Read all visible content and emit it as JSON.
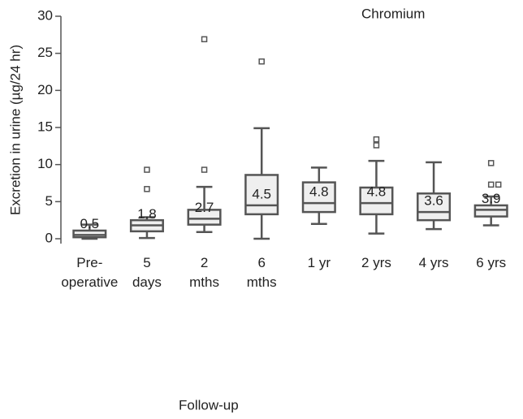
{
  "chart_data": {
    "type": "box",
    "title": "Chromium",
    "x_label": "Follow-up",
    "y_label": "Excretion in urine (µg/24 hr)",
    "categories": [
      "Pre-\noperative",
      "5\ndays",
      "2\nmths",
      "6\nmths",
      "1 yr",
      "2 yrs",
      "4 yrs",
      "6 yrs"
    ],
    "boxes": [
      {
        "low": 0,
        "q1": 0.2,
        "median": 0.5,
        "q3": 1.1,
        "high": 1.9,
        "outliers": []
      },
      {
        "low": 0.1,
        "q1": 1.0,
        "median": 1.8,
        "q3": 2.5,
        "high": 2.9,
        "outliers": [
          6.7,
          9.3
        ]
      },
      {
        "low": 0.9,
        "q1": 1.9,
        "median": 2.7,
        "q3": 3.9,
        "high": 7.0,
        "outliers": [
          9.3,
          26.9
        ]
      },
      {
        "low": 0,
        "q1": 3.3,
        "median": 4.5,
        "q3": 8.6,
        "high": 14.9,
        "outliers": [
          23.9
        ]
      },
      {
        "low": 2.0,
        "q1": 3.6,
        "median": 4.8,
        "q3": 7.6,
        "high": 9.6,
        "outliers": []
      },
      {
        "low": 0.7,
        "q1": 3.3,
        "median": 4.8,
        "q3": 6.9,
        "high": 10.5,
        "outliers": [
          12.6,
          13.4
        ]
      },
      {
        "low": 1.3,
        "q1": 2.5,
        "median": 3.6,
        "q3": 6.1,
        "high": 10.3,
        "outliers": []
      },
      {
        "low": 1.8,
        "q1": 3.0,
        "median": 3.9,
        "q3": 4.5,
        "high": 5.7,
        "outliers": [
          7.3,
          7.3,
          10.2
        ]
      }
    ],
    "color": "#efefef",
    "ylim": [
      0,
      30
    ],
    "yticks": [
      0,
      5,
      10,
      15,
      20,
      25,
      30
    ]
  }
}
